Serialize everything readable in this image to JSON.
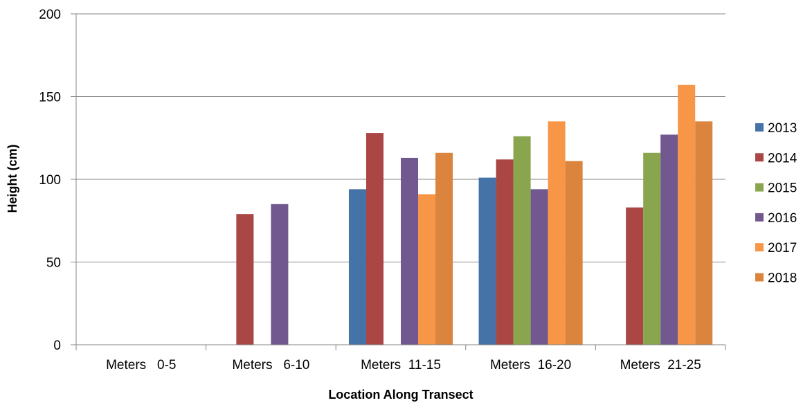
{
  "chart_data": {
    "type": "bar",
    "title": "",
    "xlabel": "Location Along Transect",
    "ylabel": "Height (cm)",
    "ylim": [
      0,
      200
    ],
    "yticks": [
      0,
      50,
      100,
      150,
      200
    ],
    "grid": true,
    "legend_position": "right",
    "categories": [
      "Meters   0-5",
      "Meters   6-10",
      "Meters  11-15",
      "Meters  16-20",
      "Meters  21-25"
    ],
    "series": [
      {
        "name": "2013",
        "color": "#4572A7",
        "values": [
          null,
          null,
          94,
          101,
          null
        ]
      },
      {
        "name": "2014",
        "color": "#AA4643",
        "values": [
          null,
          79,
          128,
          112,
          83
        ]
      },
      {
        "name": "2015",
        "color": "#89A54E",
        "values": [
          null,
          null,
          null,
          126,
          116
        ]
      },
      {
        "name": "2016",
        "color": "#71588F",
        "values": [
          null,
          85,
          113,
          94,
          127
        ]
      },
      {
        "name": "2017",
        "color": "#F79646",
        "values": [
          null,
          null,
          91,
          135,
          157
        ]
      },
      {
        "name": "2018",
        "color": "#DB843D",
        "values": [
          null,
          null,
          116,
          111,
          135
        ]
      }
    ]
  }
}
